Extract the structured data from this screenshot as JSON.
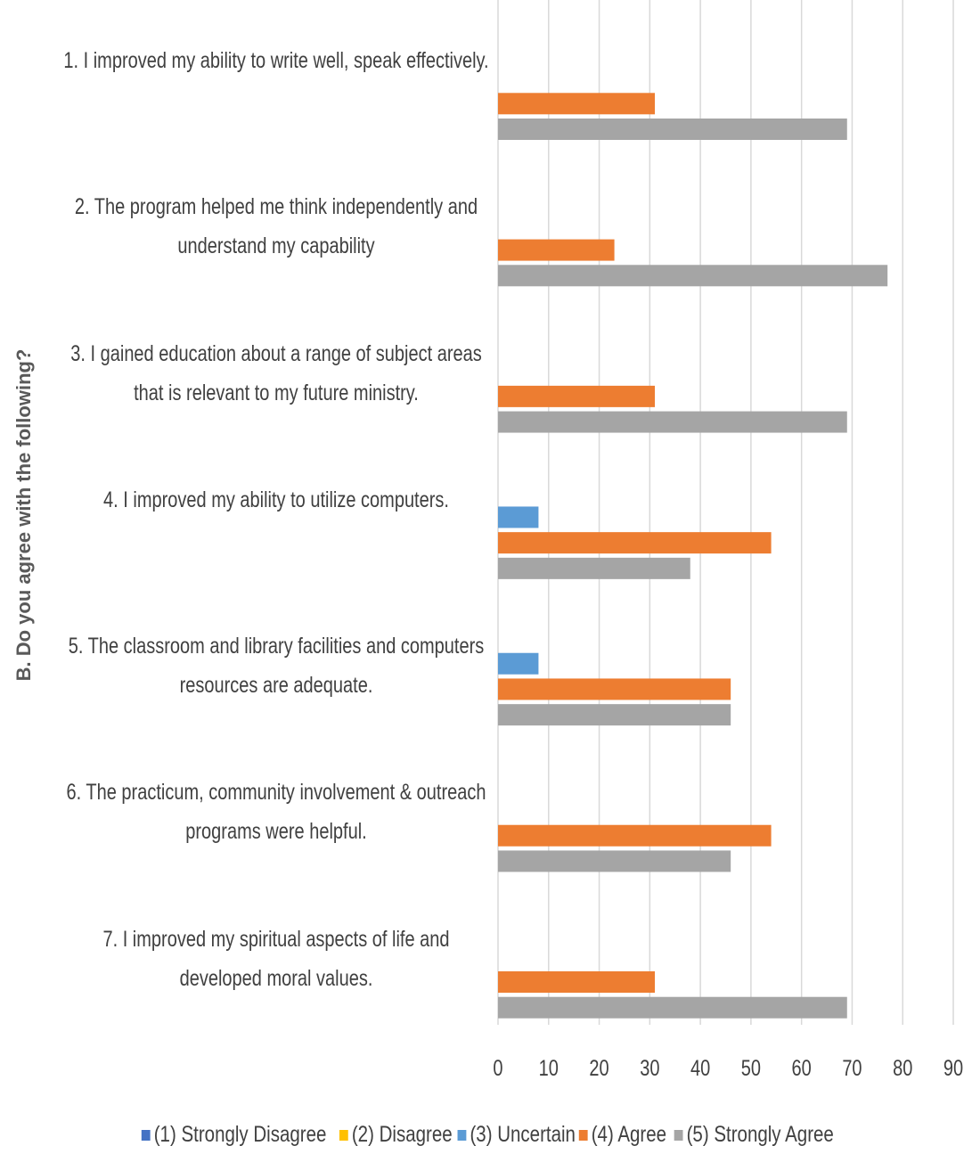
{
  "chart_data": {
    "type": "bar",
    "orientation": "horizontal",
    "y_axis_label": "B. Do you agree with the following?",
    "categories": [
      "1. I improved my ability to write well, speak effectively.",
      "2. The program helped me think independently and understand my capability",
      "3. I gained education about a range of subject areas that is relevant to my future ministry.",
      "4. I improved my ability to utilize computers.",
      "5. The classroom and library facilities and computers resources are adequate.",
      "6. The practicum, community involvement & outreach programs were helpful.",
      "7. I improved my spiritual aspects of life and developed moral values."
    ],
    "series": [
      {
        "name": "(1) Strongly Disagree",
        "color": "#4472c4",
        "values": [
          0,
          0,
          0,
          0,
          0,
          0,
          0
        ]
      },
      {
        "name": "(2) Disagree",
        "color": "#ffc000",
        "values": [
          0,
          0,
          0,
          0,
          0,
          0,
          0
        ]
      },
      {
        "name": "(3) Uncertain",
        "color": "#5b9bd5",
        "values": [
          0,
          0,
          0,
          8,
          8,
          0,
          0
        ]
      },
      {
        "name": "(4) Agree",
        "color": "#ed7d31",
        "values": [
          31,
          23,
          31,
          54,
          46,
          54,
          31
        ]
      },
      {
        "name": "(5) Strongly Agree",
        "color": "#a5a5a5",
        "values": [
          69,
          77,
          69,
          38,
          46,
          46,
          69
        ]
      }
    ],
    "xlim": [
      0,
      90
    ],
    "xticks": [
      0,
      10,
      20,
      30,
      40,
      50,
      60,
      70,
      80,
      90
    ],
    "grid": true,
    "legend": "bottom"
  }
}
